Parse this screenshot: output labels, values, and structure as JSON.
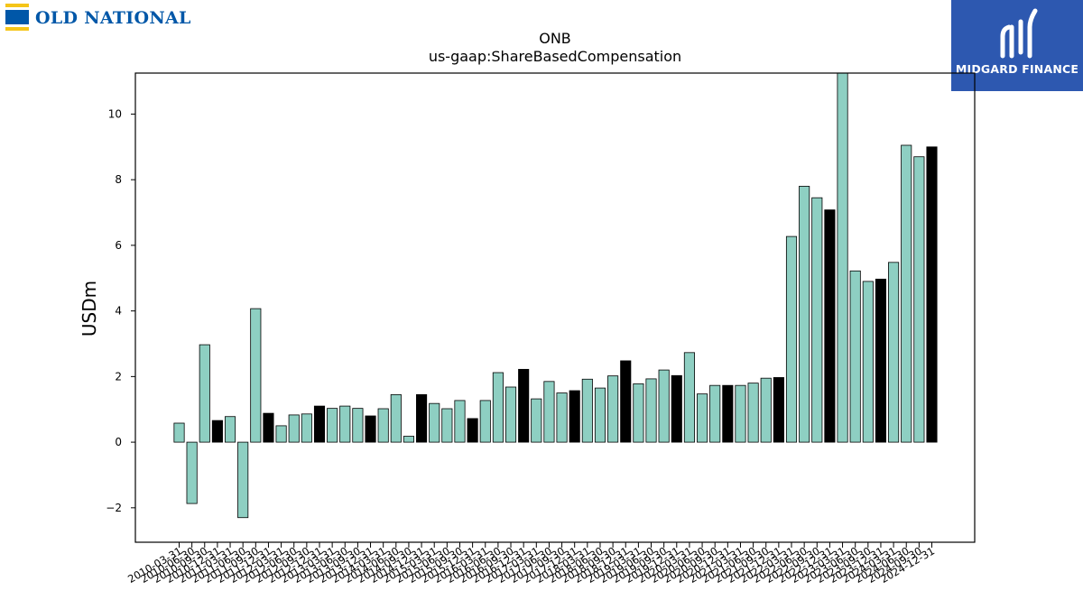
{
  "brand_left": {
    "name": "OLD NATIONAL",
    "color": "#0057a8",
    "accent": "#f5c518",
    "icon": "onb-bank-mark-icon"
  },
  "brand_right": {
    "name": "MIDGARD FINANCE",
    "bg": "#2d58b0",
    "icon": "midgard-logo-icon"
  },
  "chart_data": {
    "type": "bar",
    "title": "ONB",
    "subtitle": "us-gaap:ShareBasedCompensation",
    "xlabel": "",
    "ylabel": "USDm",
    "ylim": [
      -3.05,
      11.25
    ],
    "yticks": [
      -2,
      0,
      2,
      4,
      6,
      8,
      10
    ],
    "ytick_labels": [
      "−2",
      "0",
      "2",
      "4",
      "6",
      "8",
      "10"
    ],
    "grid": false,
    "colors": {
      "quarter": "#8ecfc2",
      "annual": "#000000"
    },
    "categories": [
      "2010-03-31",
      "2010-06-30",
      "2010-09-30",
      "2010-12-31",
      "2011-03-31",
      "2011-06-30",
      "2011-09-30",
      "2011-12-31",
      "2012-03-31",
      "2012-06-30",
      "2012-09-30",
      "2012-12-31",
      "2013-03-31",
      "2013-06-30",
      "2013-09-30",
      "2013-12-31",
      "2014-03-31",
      "2014-06-30",
      "2014-09-30",
      "2014-12-31",
      "2015-03-31",
      "2015-06-30",
      "2015-09-30",
      "2015-12-31",
      "2016-03-31",
      "2016-06-30",
      "2016-09-30",
      "2016-12-31",
      "2017-03-31",
      "2017-06-30",
      "2017-09-30",
      "2017-12-31",
      "2018-03-31",
      "2018-06-30",
      "2018-09-30",
      "2018-12-31",
      "2019-03-31",
      "2019-06-30",
      "2019-09-30",
      "2019-12-31",
      "2020-03-31",
      "2020-06-30",
      "2020-09-30",
      "2020-12-31",
      "2021-03-31",
      "2021-06-30",
      "2021-09-30",
      "2021-12-31",
      "2022-03-31",
      "2022-06-30",
      "2022-09-30",
      "2022-12-31",
      "2023-03-31",
      "2023-06-30",
      "2023-09-30",
      "2023-12-31",
      "2024-03-31",
      "2024-06-30",
      "2024-09-30",
      "2024-12-31"
    ],
    "values": [
      0.58,
      -1.87,
      2.97,
      0.66,
      0.78,
      -2.3,
      4.07,
      0.88,
      0.5,
      0.83,
      0.86,
      1.1,
      1.03,
      1.1,
      1.03,
      0.8,
      1.02,
      1.45,
      0.18,
      1.45,
      1.18,
      1.02,
      1.27,
      0.72,
      1.27,
      2.12,
      1.68,
      2.22,
      1.32,
      1.85,
      1.5,
      1.57,
      1.92,
      1.65,
      2.02,
      2.48,
      1.78,
      1.93,
      2.2,
      2.03,
      2.73,
      1.47,
      1.73,
      1.73,
      1.73,
      1.8,
      1.95,
      1.97,
      6.27,
      7.8,
      7.45,
      7.08,
      11.25,
      5.22,
      4.9,
      4.97,
      5.48,
      9.05,
      8.7,
      9.0
    ],
    "highlighted": [
      false,
      false,
      false,
      true,
      false,
      false,
      false,
      true,
      false,
      false,
      false,
      true,
      false,
      false,
      false,
      true,
      false,
      false,
      false,
      true,
      false,
      false,
      false,
      true,
      false,
      false,
      false,
      true,
      false,
      false,
      false,
      true,
      false,
      false,
      false,
      true,
      false,
      false,
      false,
      true,
      false,
      false,
      false,
      true,
      false,
      false,
      false,
      true,
      false,
      false,
      false,
      true,
      false,
      false,
      false,
      true,
      false,
      false,
      false,
      true
    ]
  }
}
